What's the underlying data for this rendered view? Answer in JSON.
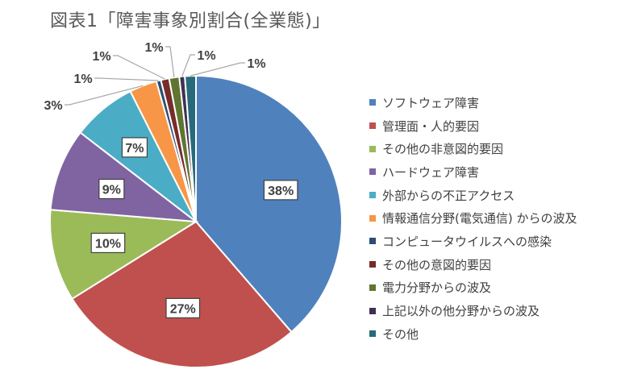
{
  "chart_data": {
    "type": "pie",
    "title": "図表1「障害事象別割合(全業態)」",
    "slices": [
      {
        "label": "ソフトウェア障害",
        "value": 38,
        "value_label": "38%",
        "color": "#4F81BD"
      },
      {
        "label": "管理面・人的要因",
        "value": 27,
        "value_label": "27%",
        "color": "#C0504D"
      },
      {
        "label": "その他の非意図的要因",
        "value": 10,
        "value_label": "10%",
        "color": "#9BBB59"
      },
      {
        "label": "ハードウェア障害",
        "value": 9,
        "value_label": "9%",
        "color": "#8064A2"
      },
      {
        "label": "外部からの不正アクセス",
        "value": 7,
        "value_label": "7%",
        "color": "#4BACC6"
      },
      {
        "label": "情報通信分野(電気通信) からの波及",
        "value": 3,
        "value_label": "3%",
        "color": "#F79646"
      },
      {
        "label": "コンピュータウイルスへの感染",
        "value": 0.5,
        "value_label": "1%",
        "color": "#2C4D75"
      },
      {
        "label": "その他の意図的要因",
        "value": 0.9,
        "value_label": "1%",
        "color": "#772C2A"
      },
      {
        "label": "電力分野からの波及",
        "value": 1.1,
        "value_label": "1%",
        "color": "#5F7530"
      },
      {
        "label": "上記以外の他分野からの波及",
        "value": 0.6,
        "value_label": "1%",
        "color": "#403152"
      },
      {
        "label": "その他",
        "value": 1.2,
        "value_label": "1%",
        "color": "#276A7C"
      }
    ],
    "legend_position": "right",
    "start_angle": "12 o'clock, clockwise"
  }
}
